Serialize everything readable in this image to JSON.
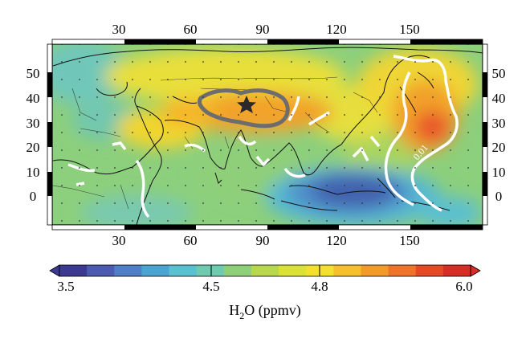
{
  "map": {
    "lon_ticks": [
      "30",
      "60",
      "90",
      "120",
      "150"
    ],
    "lat_ticks": [
      "50",
      "40",
      "30",
      "20",
      "10",
      "0"
    ],
    "contour_label": "0.01",
    "marker": "star-marker"
  },
  "colorbar": {
    "tick_labels": [
      "3.5",
      "4.5",
      "4.8",
      "6.0"
    ],
    "label_main": "H",
    "label_sub": "2",
    "label_rest": "O (ppmv)",
    "palette": [
      "#3c3a8f",
      "#4b5bb0",
      "#4f7fc4",
      "#4aa3d3",
      "#5bc0cf",
      "#6fcab0",
      "#8ed07a",
      "#b7d84c",
      "#dbe236",
      "#f4e12b",
      "#f6bf2b",
      "#f29a2a",
      "#ed7428",
      "#e44a26",
      "#d62d26"
    ]
  }
}
